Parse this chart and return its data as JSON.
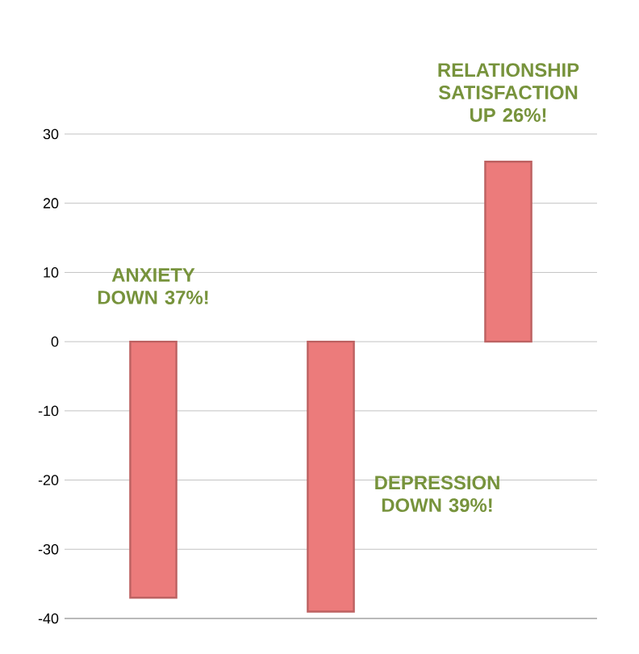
{
  "chart_data": {
    "type": "bar",
    "categories": [
      null,
      null,
      null
    ],
    "series": [
      {
        "color": "#ec7b7b",
        "values": [
          -37,
          -39,
          26
        ]
      }
    ],
    "ylim": [
      -40,
      30
    ],
    "yticks": [
      -40,
      -30,
      -20,
      -10,
      0,
      10,
      20,
      30
    ],
    "grid": "y",
    "tick_labels": "y",
    "annotations": [
      "ANXIETY DOWN 37%!",
      "DEPRESSION DOWN 39%!",
      "RELATIONSHIP SATISFACTION UP 26%!"
    ]
  }
}
